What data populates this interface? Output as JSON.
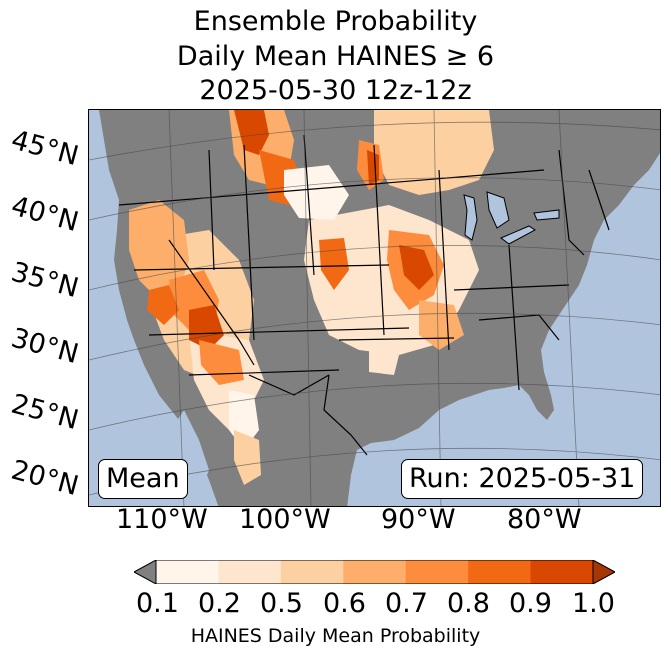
{
  "title": {
    "line1": "Ensemble Probability",
    "line2": "Daily Mean HAINES ≥ 6",
    "line3": "2025-05-30 12z-12z"
  },
  "map": {
    "ocean_color": "#b0c4de",
    "land_color": "#808080",
    "boundary_color": "#000000",
    "lat_labels": [
      "45°N",
      "40°N",
      "35°N",
      "30°N",
      "25°N",
      "20°N"
    ],
    "lon_labels": [
      "110°W",
      "100°W",
      "90°W",
      "80°W"
    ]
  },
  "labels": {
    "stat": "Mean",
    "run": "Run: 2025-05-31"
  },
  "colorbar": {
    "ticks": [
      "0.1",
      "0.2",
      "0.5",
      "0.6",
      "0.7",
      "0.8",
      "0.9",
      "1.0"
    ],
    "colors": [
      "#fff5eb",
      "#fee6ce",
      "#fdd0a2",
      "#fdae6b",
      "#fd8d3c",
      "#f16913",
      "#d94801"
    ],
    "under_color": "#808080",
    "over_color": "#a63603",
    "label": "HAINES Daily Mean Probability"
  }
}
